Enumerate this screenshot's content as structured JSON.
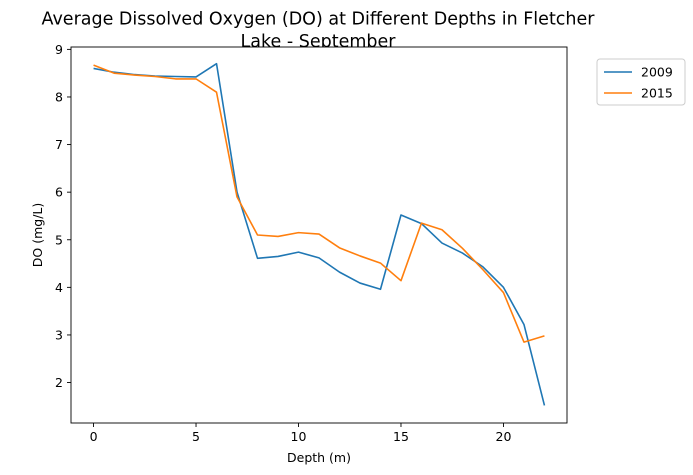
{
  "chart_data": {
    "type": "line",
    "title_lines": [
      "Average Dissolved Oxygen (DO) at Different Depths in Fletcher",
      "Lake - September"
    ],
    "xlabel": "Depth (m)",
    "ylabel": "DO (mg/L)",
    "xlim": [
      -1.1,
      23.1
    ],
    "ylim": [
      1.15,
      9.05
    ],
    "xticks": [
      0,
      5,
      10,
      15,
      20
    ],
    "yticks": [
      2,
      3,
      4,
      5,
      6,
      7,
      8,
      9
    ],
    "grid": false,
    "legend_position": "outside-top-right",
    "series": [
      {
        "name": "2009",
        "color": "#1f77b4",
        "x": [
          0,
          1,
          2,
          3,
          4,
          5,
          6,
          7,
          8,
          9,
          10,
          11,
          12,
          13,
          14,
          15,
          16,
          17,
          18,
          19,
          20,
          21,
          22
        ],
        "y": [
          8.6,
          8.52,
          8.47,
          8.44,
          8.43,
          8.42,
          8.7,
          6.0,
          4.61,
          4.65,
          4.74,
          4.62,
          4.32,
          4.09,
          3.96,
          5.52,
          5.34,
          4.93,
          4.72,
          4.43,
          4.0,
          3.22,
          1.52
        ]
      },
      {
        "name": "2015",
        "color": "#ff7f0e",
        "x": [
          0,
          1,
          2,
          3,
          4,
          5,
          6,
          7,
          8,
          9,
          10,
          11,
          12,
          13,
          14,
          15,
          16,
          17,
          18,
          19,
          20,
          21,
          22
        ],
        "y": [
          8.67,
          8.5,
          8.46,
          8.43,
          8.38,
          8.38,
          8.1,
          5.9,
          5.1,
          5.07,
          5.15,
          5.12,
          4.83,
          4.66,
          4.51,
          4.14,
          5.35,
          5.21,
          4.82,
          4.37,
          3.89,
          2.85,
          2.98
        ]
      }
    ]
  }
}
